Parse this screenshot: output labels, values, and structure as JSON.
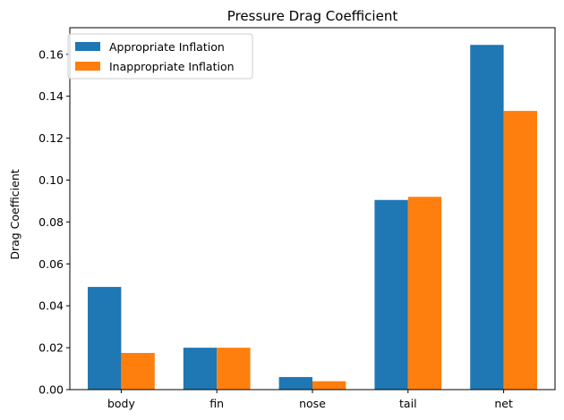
{
  "chart_data": {
    "type": "bar",
    "title": "Pressure Drag Coefficient",
    "xlabel": "",
    "ylabel": "Drag Coefficient",
    "categories": [
      "body",
      "fin",
      "nose",
      "tail",
      "net"
    ],
    "series": [
      {
        "name": "Appropriate Inflation",
        "color": "#1f77b4",
        "values": [
          0.049,
          0.02,
          0.006,
          0.0905,
          0.1645
        ]
      },
      {
        "name": "Inappropriate Inflation",
        "color": "#ff7f0e",
        "values": [
          0.0175,
          0.02,
          0.004,
          0.092,
          0.133
        ]
      }
    ],
    "ylim": [
      0,
      0.1727
    ],
    "yticks": [
      "0.00",
      "0.02",
      "0.04",
      "0.06",
      "0.08",
      "0.10",
      "0.12",
      "0.14",
      "0.16"
    ],
    "grid": false,
    "legend_position": "top-left"
  }
}
